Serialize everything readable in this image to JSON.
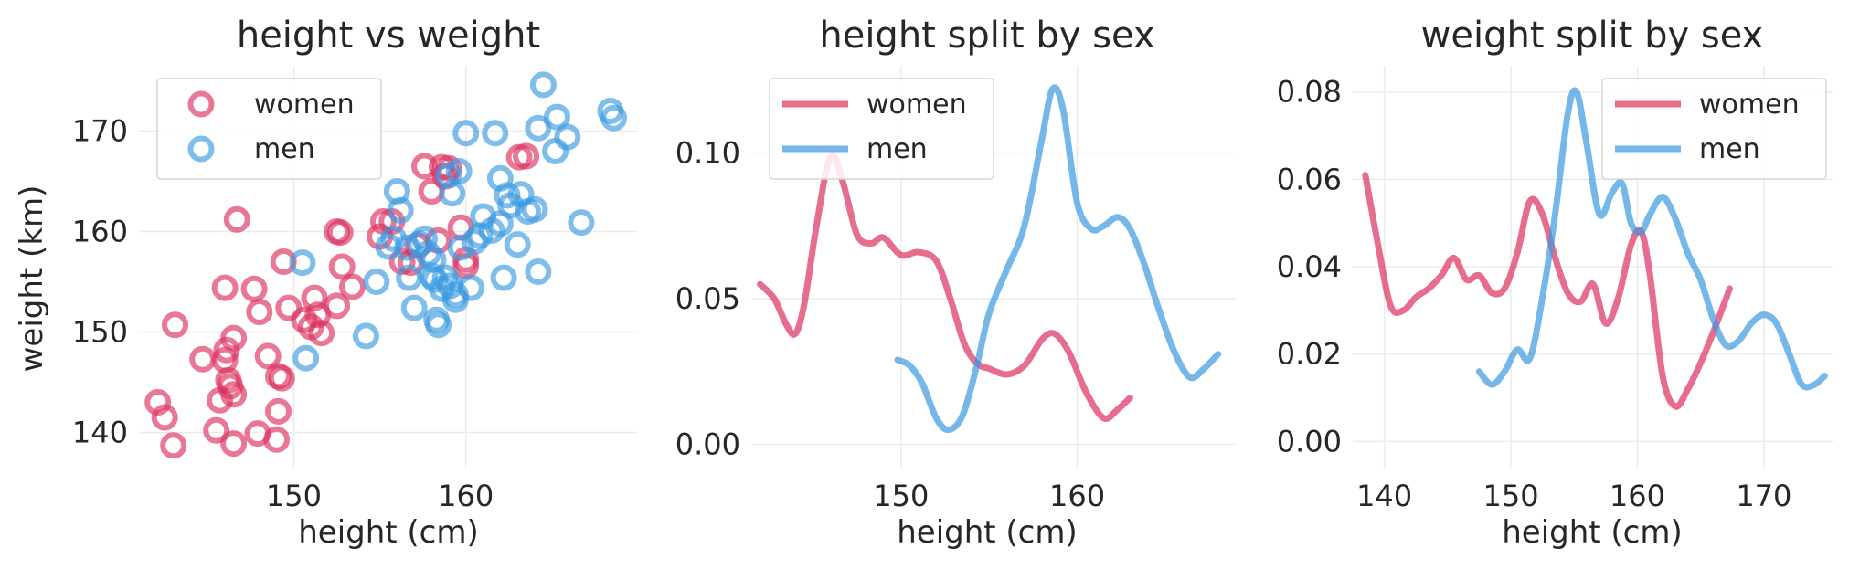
{
  "colors": {
    "women": "#dc2f5e",
    "men": "#3a99e0"
  },
  "chart_data": [
    {
      "type": "scatter",
      "title": "height vs weight",
      "xlabel": "height (cm)",
      "ylabel": "weight (km)",
      "xlim": [
        141,
        170
      ],
      "ylim": [
        136.5,
        176.5
      ],
      "xticks": [
        150,
        160
      ],
      "yticks": [
        140,
        150,
        160,
        170
      ],
      "grid": true,
      "legend": {
        "placement": "top-left",
        "marker": "circle"
      },
      "series": [
        {
          "name": "women",
          "points": [
            [
              142.1,
              143
            ],
            [
              142.5,
              141.5
            ],
            [
              143,
              138.7
            ],
            [
              143.1,
              150.7
            ],
            [
              144.7,
              147.3
            ],
            [
              145.5,
              140.2
            ],
            [
              145.7,
              143.2
            ],
            [
              146,
              147.2
            ],
            [
              146.1,
              148.2
            ],
            [
              146,
              154.4
            ],
            [
              146.2,
              145.2
            ],
            [
              146.3,
              144.6
            ],
            [
              146.5,
              143.8
            ],
            [
              146.5,
              149.4
            ],
            [
              146.5,
              138.9
            ],
            [
              146.7,
              161.2
            ],
            [
              147.7,
              154.3
            ],
            [
              147.9,
              139.9
            ],
            [
              148,
              152
            ],
            [
              148.5,
              147.6
            ],
            [
              149,
              139.3
            ],
            [
              149.1,
              142.1
            ],
            [
              149.1,
              145.6
            ],
            [
              149.3,
              145.4
            ],
            [
              149.4,
              157
            ],
            [
              149.7,
              152.4
            ],
            [
              150.6,
              151.2
            ],
            [
              151,
              150.5
            ],
            [
              151.2,
              153.4
            ],
            [
              151.4,
              151.7
            ],
            [
              151.6,
              149.9
            ],
            [
              152.5,
              160
            ],
            [
              152.5,
              152.6
            ],
            [
              152.8,
              156.5
            ],
            [
              152.7,
              159.9
            ],
            [
              153.4,
              154.5
            ],
            [
              155,
              159.5
            ],
            [
              155.2,
              161
            ],
            [
              155.7,
              161
            ],
            [
              156.3,
              157
            ],
            [
              156.8,
              156.9
            ],
            [
              157.2,
              158.6
            ],
            [
              157.6,
              166.5
            ],
            [
              158,
              164
            ],
            [
              158.4,
              159.1
            ],
            [
              158.6,
              166.4
            ],
            [
              158.8,
              165.5
            ],
            [
              159,
              166.3
            ],
            [
              159.7,
              160.4
            ],
            [
              160,
              157.2
            ],
            [
              160,
              156.6
            ],
            [
              163.1,
              167.4
            ],
            [
              163.5,
              167.5
            ]
          ]
        },
        {
          "name": "men",
          "points": [
            [
              150.5,
              156.9
            ],
            [
              150.7,
              147.4
            ],
            [
              154.2,
              149.6
            ],
            [
              154.8,
              155
            ],
            [
              155.5,
              158.5
            ],
            [
              155.8,
              159.3
            ],
            [
              156,
              164
            ],
            [
              156.2,
              162.1
            ],
            [
              156.6,
              158.4
            ],
            [
              156.7,
              155.4
            ],
            [
              157,
              152.4
            ],
            [
              157.3,
              158.8
            ],
            [
              157.6,
              159.3
            ],
            [
              157.8,
              157.8
            ],
            [
              158,
              155.6
            ],
            [
              158.1,
              157.2
            ],
            [
              158.2,
              155.2
            ],
            [
              158.3,
              151.2
            ],
            [
              158.4,
              150.7
            ],
            [
              158.6,
              154.3
            ],
            [
              158.8,
              155.4
            ],
            [
              159,
              165.6
            ],
            [
              159.1,
              154.6
            ],
            [
              159.2,
              163.8
            ],
            [
              159.4,
              153.7
            ],
            [
              159.4,
              153.2
            ],
            [
              159.6,
              166
            ],
            [
              159.7,
              158.4
            ],
            [
              160,
              169.8
            ],
            [
              160.3,
              154.4
            ],
            [
              160.5,
              159
            ],
            [
              160.8,
              159.6
            ],
            [
              161,
              161.5
            ],
            [
              161.5,
              160.1
            ],
            [
              161.7,
              169.8
            ],
            [
              162,
              165.3
            ],
            [
              162,
              160.8
            ],
            [
              162.2,
              155.4
            ],
            [
              162.4,
              163.6
            ],
            [
              162.6,
              162.6
            ],
            [
              163,
              158.7
            ],
            [
              163.2,
              163.7
            ],
            [
              163.6,
              162
            ],
            [
              164,
              162.2
            ],
            [
              164.2,
              170.3
            ],
            [
              164.2,
              156
            ],
            [
              164.5,
              174.6
            ],
            [
              165.2,
              168
            ],
            [
              165.3,
              171.4
            ],
            [
              165.9,
              169.4
            ],
            [
              166.7,
              160.9
            ],
            [
              168.4,
              172
            ],
            [
              168.6,
              171.3
            ]
          ]
        }
      ]
    },
    {
      "type": "line",
      "title": "height split by sex",
      "xlabel": "height (cm)",
      "ylabel": "",
      "xlim": [
        141.5,
        169
      ],
      "ylim": [
        -0.008,
        0.13
      ],
      "xticks": [
        150,
        160
      ],
      "yticks": [
        0.0,
        0.05,
        0.1
      ],
      "ytick_labels": [
        "0.00",
        "0.05",
        "0.10"
      ],
      "grid": true,
      "legend": {
        "placement": "top-left",
        "marker": "line"
      },
      "series": [
        {
          "name": "women",
          "x": [
            142,
            142.8,
            143.5,
            144,
            144.5,
            145.2,
            146,
            146.7,
            147.5,
            148.3,
            149,
            150,
            151,
            152,
            152.8,
            153.5,
            154,
            154.5,
            155,
            156,
            157,
            158,
            158.7,
            159.5,
            160.5,
            161.5,
            162.3,
            163
          ],
          "y": [
            0.055,
            0.05,
            0.041,
            0.038,
            0.048,
            0.075,
            0.099,
            0.09,
            0.072,
            0.069,
            0.071,
            0.065,
            0.066,
            0.063,
            0.05,
            0.036,
            0.03,
            0.027,
            0.026,
            0.024,
            0.027,
            0.036,
            0.038,
            0.032,
            0.018,
            0.009,
            0.012,
            0.016
          ]
        },
        {
          "name": "men",
          "x": [
            149.8,
            150.5,
            151.2,
            152,
            152.7,
            153.5,
            154.3,
            155,
            156,
            157,
            158,
            158.6,
            159.2,
            160,
            160.8,
            161.5,
            162.3,
            163,
            163.8,
            164.6,
            165.5,
            166.4,
            167.2,
            168
          ],
          "y": [
            0.029,
            0.027,
            0.021,
            0.009,
            0.005,
            0.01,
            0.027,
            0.045,
            0.06,
            0.075,
            0.105,
            0.122,
            0.115,
            0.083,
            0.074,
            0.075,
            0.078,
            0.074,
            0.062,
            0.047,
            0.032,
            0.023,
            0.026,
            0.031
          ]
        }
      ]
    },
    {
      "type": "line",
      "title": "weight split by sex",
      "xlabel": "height (cm)",
      "ylabel": "",
      "xlim": [
        137.5,
        175.5
      ],
      "ylim": [
        -0.006,
        0.086
      ],
      "xticks": [
        140,
        150,
        160,
        170
      ],
      "yticks": [
        0.0,
        0.02,
        0.04,
        0.06,
        0.08
      ],
      "ytick_labels": [
        "0.00",
        "0.02",
        "0.04",
        "0.06",
        "0.08"
      ],
      "grid": true,
      "legend": {
        "placement": "top-right",
        "marker": "line"
      },
      "series": [
        {
          "name": "women",
          "x": [
            138.5,
            139.5,
            140.5,
            141.5,
            142.5,
            143.5,
            144.5,
            145.5,
            146.5,
            147.5,
            148.5,
            149.5,
            150.5,
            151.5,
            152.5,
            153.5,
            154.5,
            155.5,
            156.5,
            157.5,
            158.5,
            159.5,
            160.3,
            161,
            162,
            163,
            164,
            165,
            166,
            167.3
          ],
          "y": [
            0.061,
            0.045,
            0.031,
            0.03,
            0.033,
            0.035,
            0.038,
            0.042,
            0.037,
            0.038,
            0.034,
            0.035,
            0.043,
            0.055,
            0.052,
            0.042,
            0.034,
            0.032,
            0.036,
            0.027,
            0.033,
            0.045,
            0.048,
            0.038,
            0.015,
            0.008,
            0.012,
            0.018,
            0.025,
            0.035
          ]
        },
        {
          "name": "men",
          "x": [
            147.5,
            148.5,
            149.5,
            150.5,
            151.5,
            152.5,
            153.5,
            154.5,
            155.2,
            156,
            157,
            158,
            158.8,
            159.5,
            160.3,
            161,
            162,
            163,
            164,
            165,
            166,
            167,
            168,
            169,
            170,
            171,
            172,
            173,
            174,
            174.8
          ],
          "y": [
            0.016,
            0.013,
            0.016,
            0.021,
            0.019,
            0.033,
            0.052,
            0.075,
            0.08,
            0.068,
            0.052,
            0.057,
            0.059,
            0.05,
            0.048,
            0.052,
            0.056,
            0.051,
            0.043,
            0.037,
            0.028,
            0.022,
            0.023,
            0.027,
            0.029,
            0.027,
            0.02,
            0.013,
            0.013,
            0.015
          ]
        }
      ]
    }
  ]
}
